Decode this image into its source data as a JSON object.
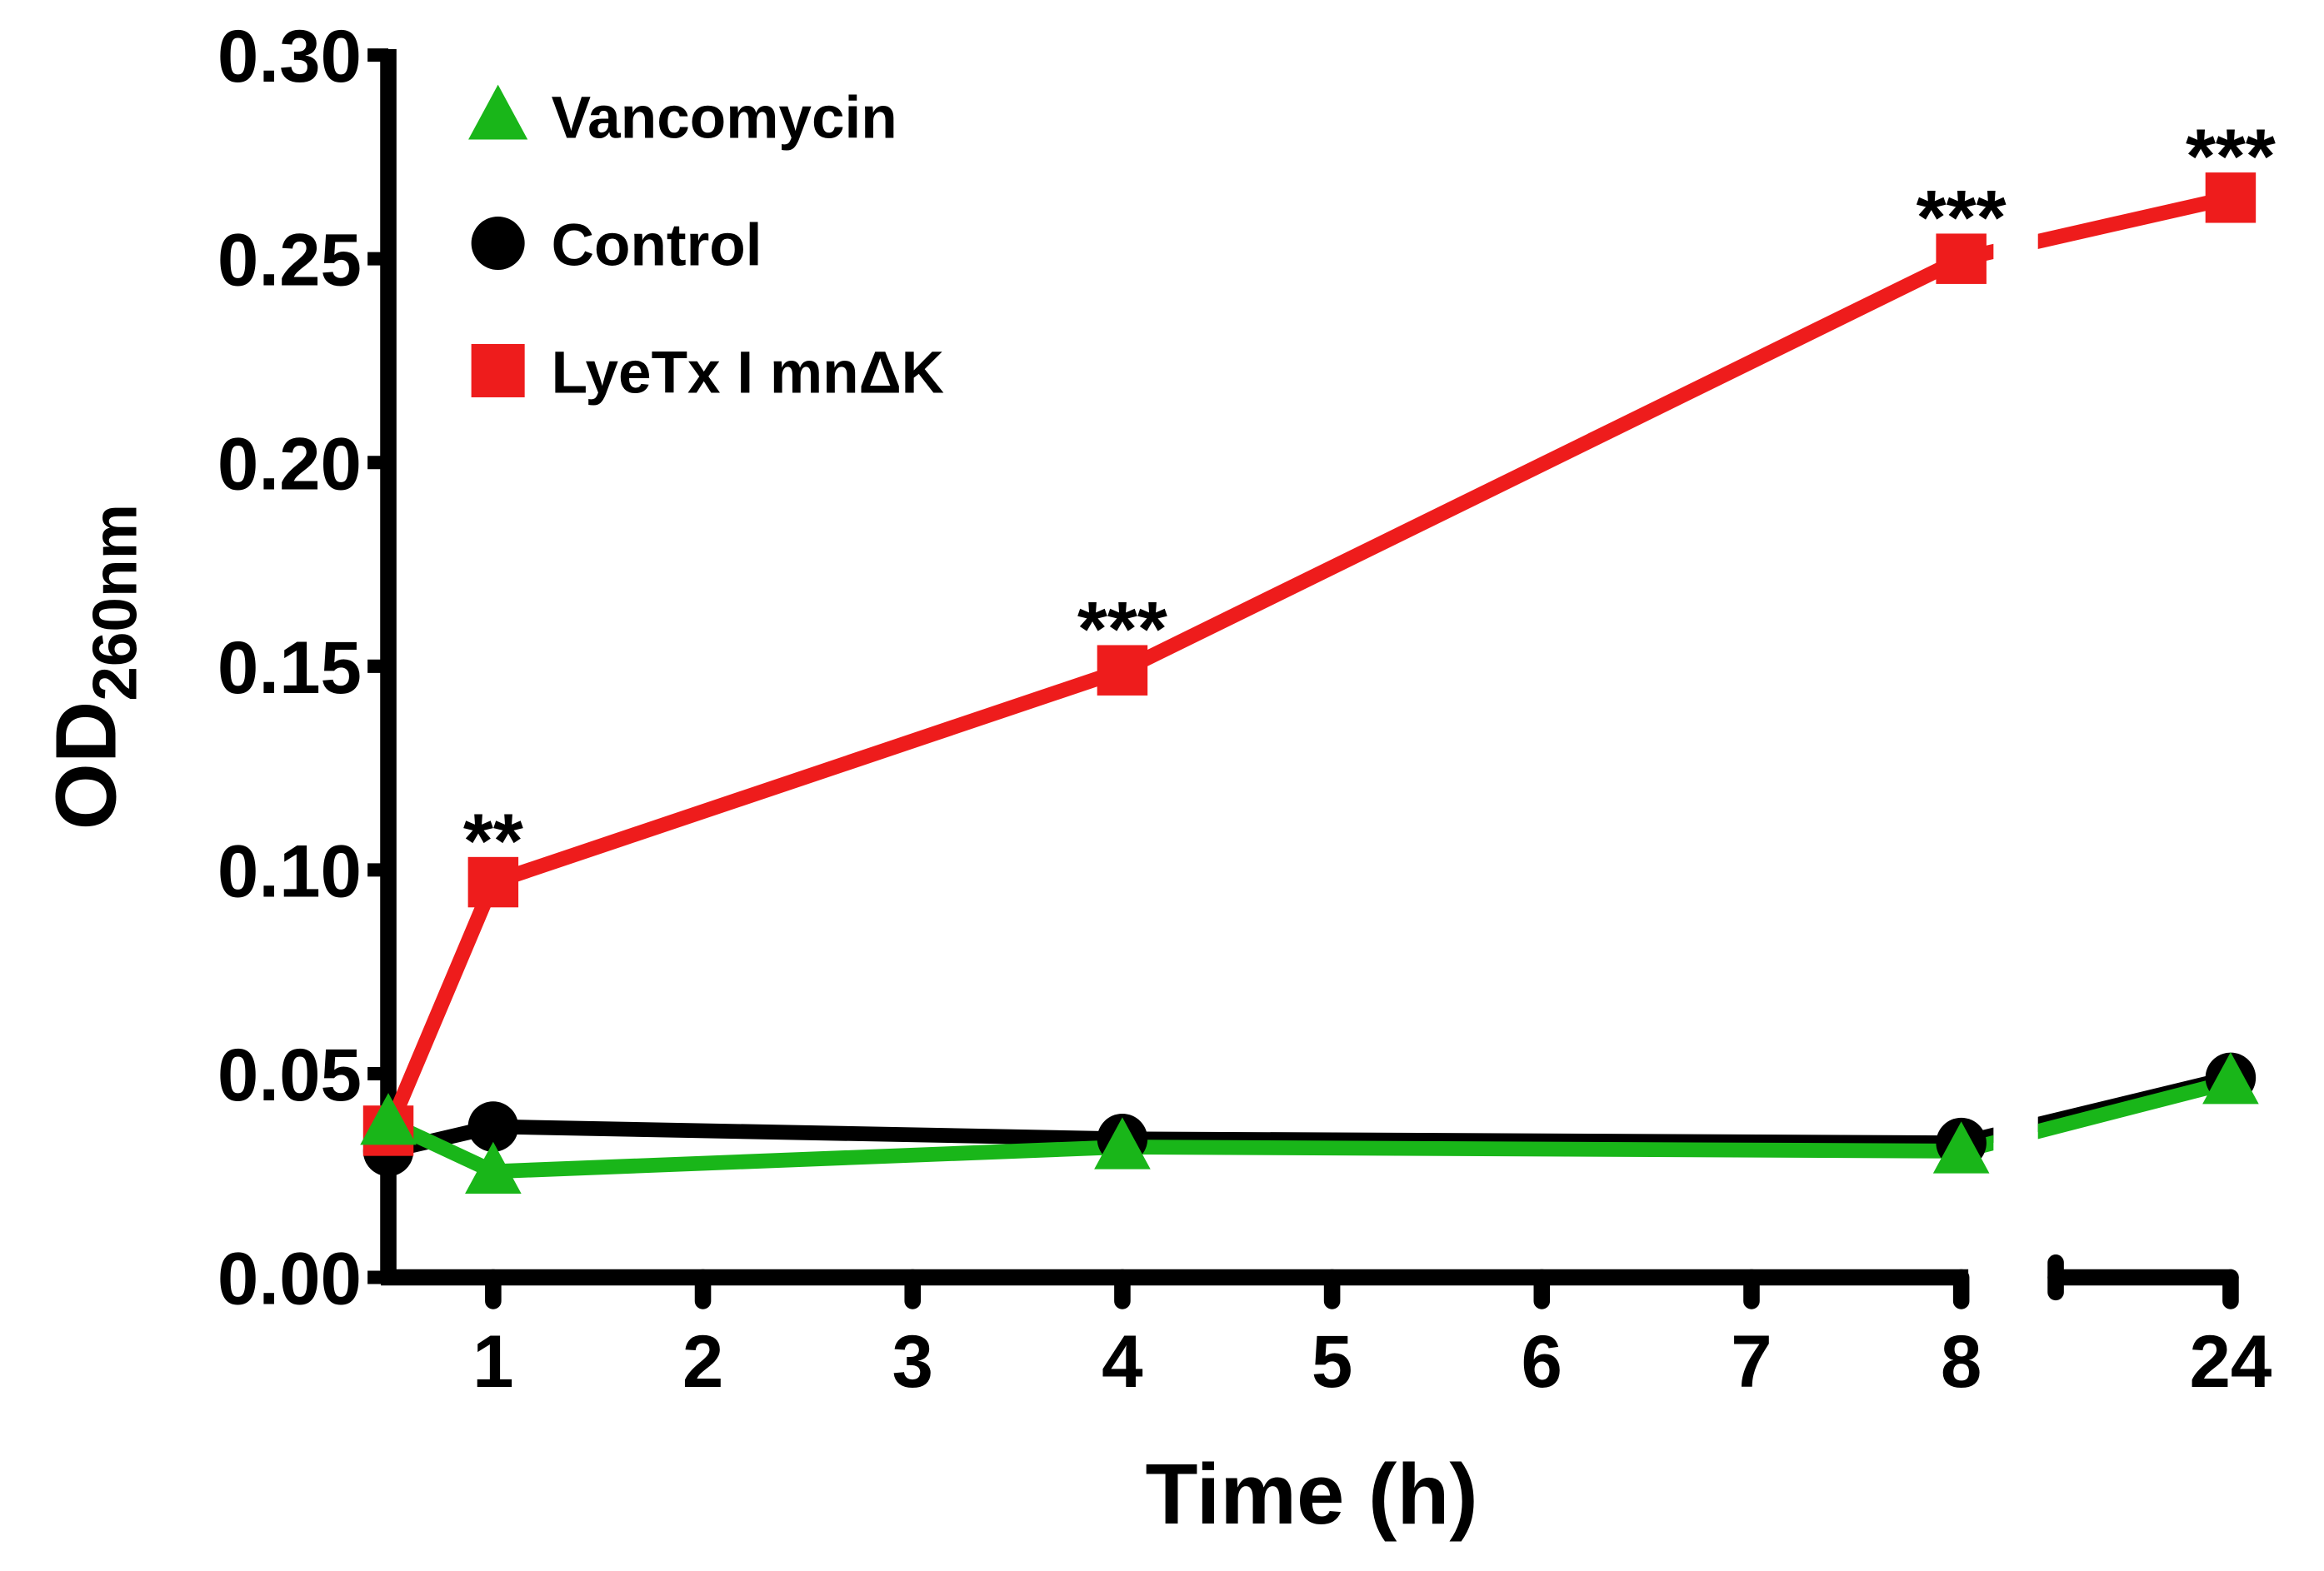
{
  "chart_data": {
    "type": "line",
    "title": "",
    "xlabel": "Time (h)",
    "ylabel": "OD",
    "ylabel_subscript": "260nm",
    "ylim": [
      0,
      0.3
    ],
    "xlim": [
      0.5,
      24
    ],
    "x_axis_break": "between 8 and 24",
    "yticks": [
      "0.00",
      "0.05",
      "0.10",
      "0.15",
      "0.20",
      "0.25",
      "0.30"
    ],
    "xticks": [
      "1",
      "2",
      "3",
      "4",
      "5",
      "6",
      "7",
      "8",
      "24"
    ],
    "grid": false,
    "legend_position": "top-left",
    "series": [
      {
        "name": "Vancomycin",
        "color": "#19b619",
        "marker": "triangle",
        "x": [
          0.5,
          1,
          4,
          8,
          24
        ],
        "y": [
          0.038,
          0.026,
          0.032,
          0.031,
          0.048
        ]
      },
      {
        "name": "Control",
        "color": "#000000",
        "marker": "circle",
        "x": [
          0.5,
          1,
          4,
          8,
          24
        ],
        "y": [
          0.031,
          0.037,
          0.034,
          0.033,
          0.049
        ]
      },
      {
        "name": "LyeTx I mnΔK",
        "color": "#ee1c1c",
        "marker": "square",
        "x": [
          0.5,
          1,
          4,
          8,
          24
        ],
        "y": [
          0.036,
          0.097,
          0.149,
          0.25,
          0.265
        ]
      }
    ],
    "annotations": [
      {
        "x": 1,
        "y": 0.097,
        "text": "**"
      },
      {
        "x": 4,
        "y": 0.149,
        "text": "***"
      },
      {
        "x": 8,
        "y": 0.25,
        "text": "***"
      },
      {
        "x": 24,
        "y": 0.265,
        "text": "***"
      }
    ]
  }
}
